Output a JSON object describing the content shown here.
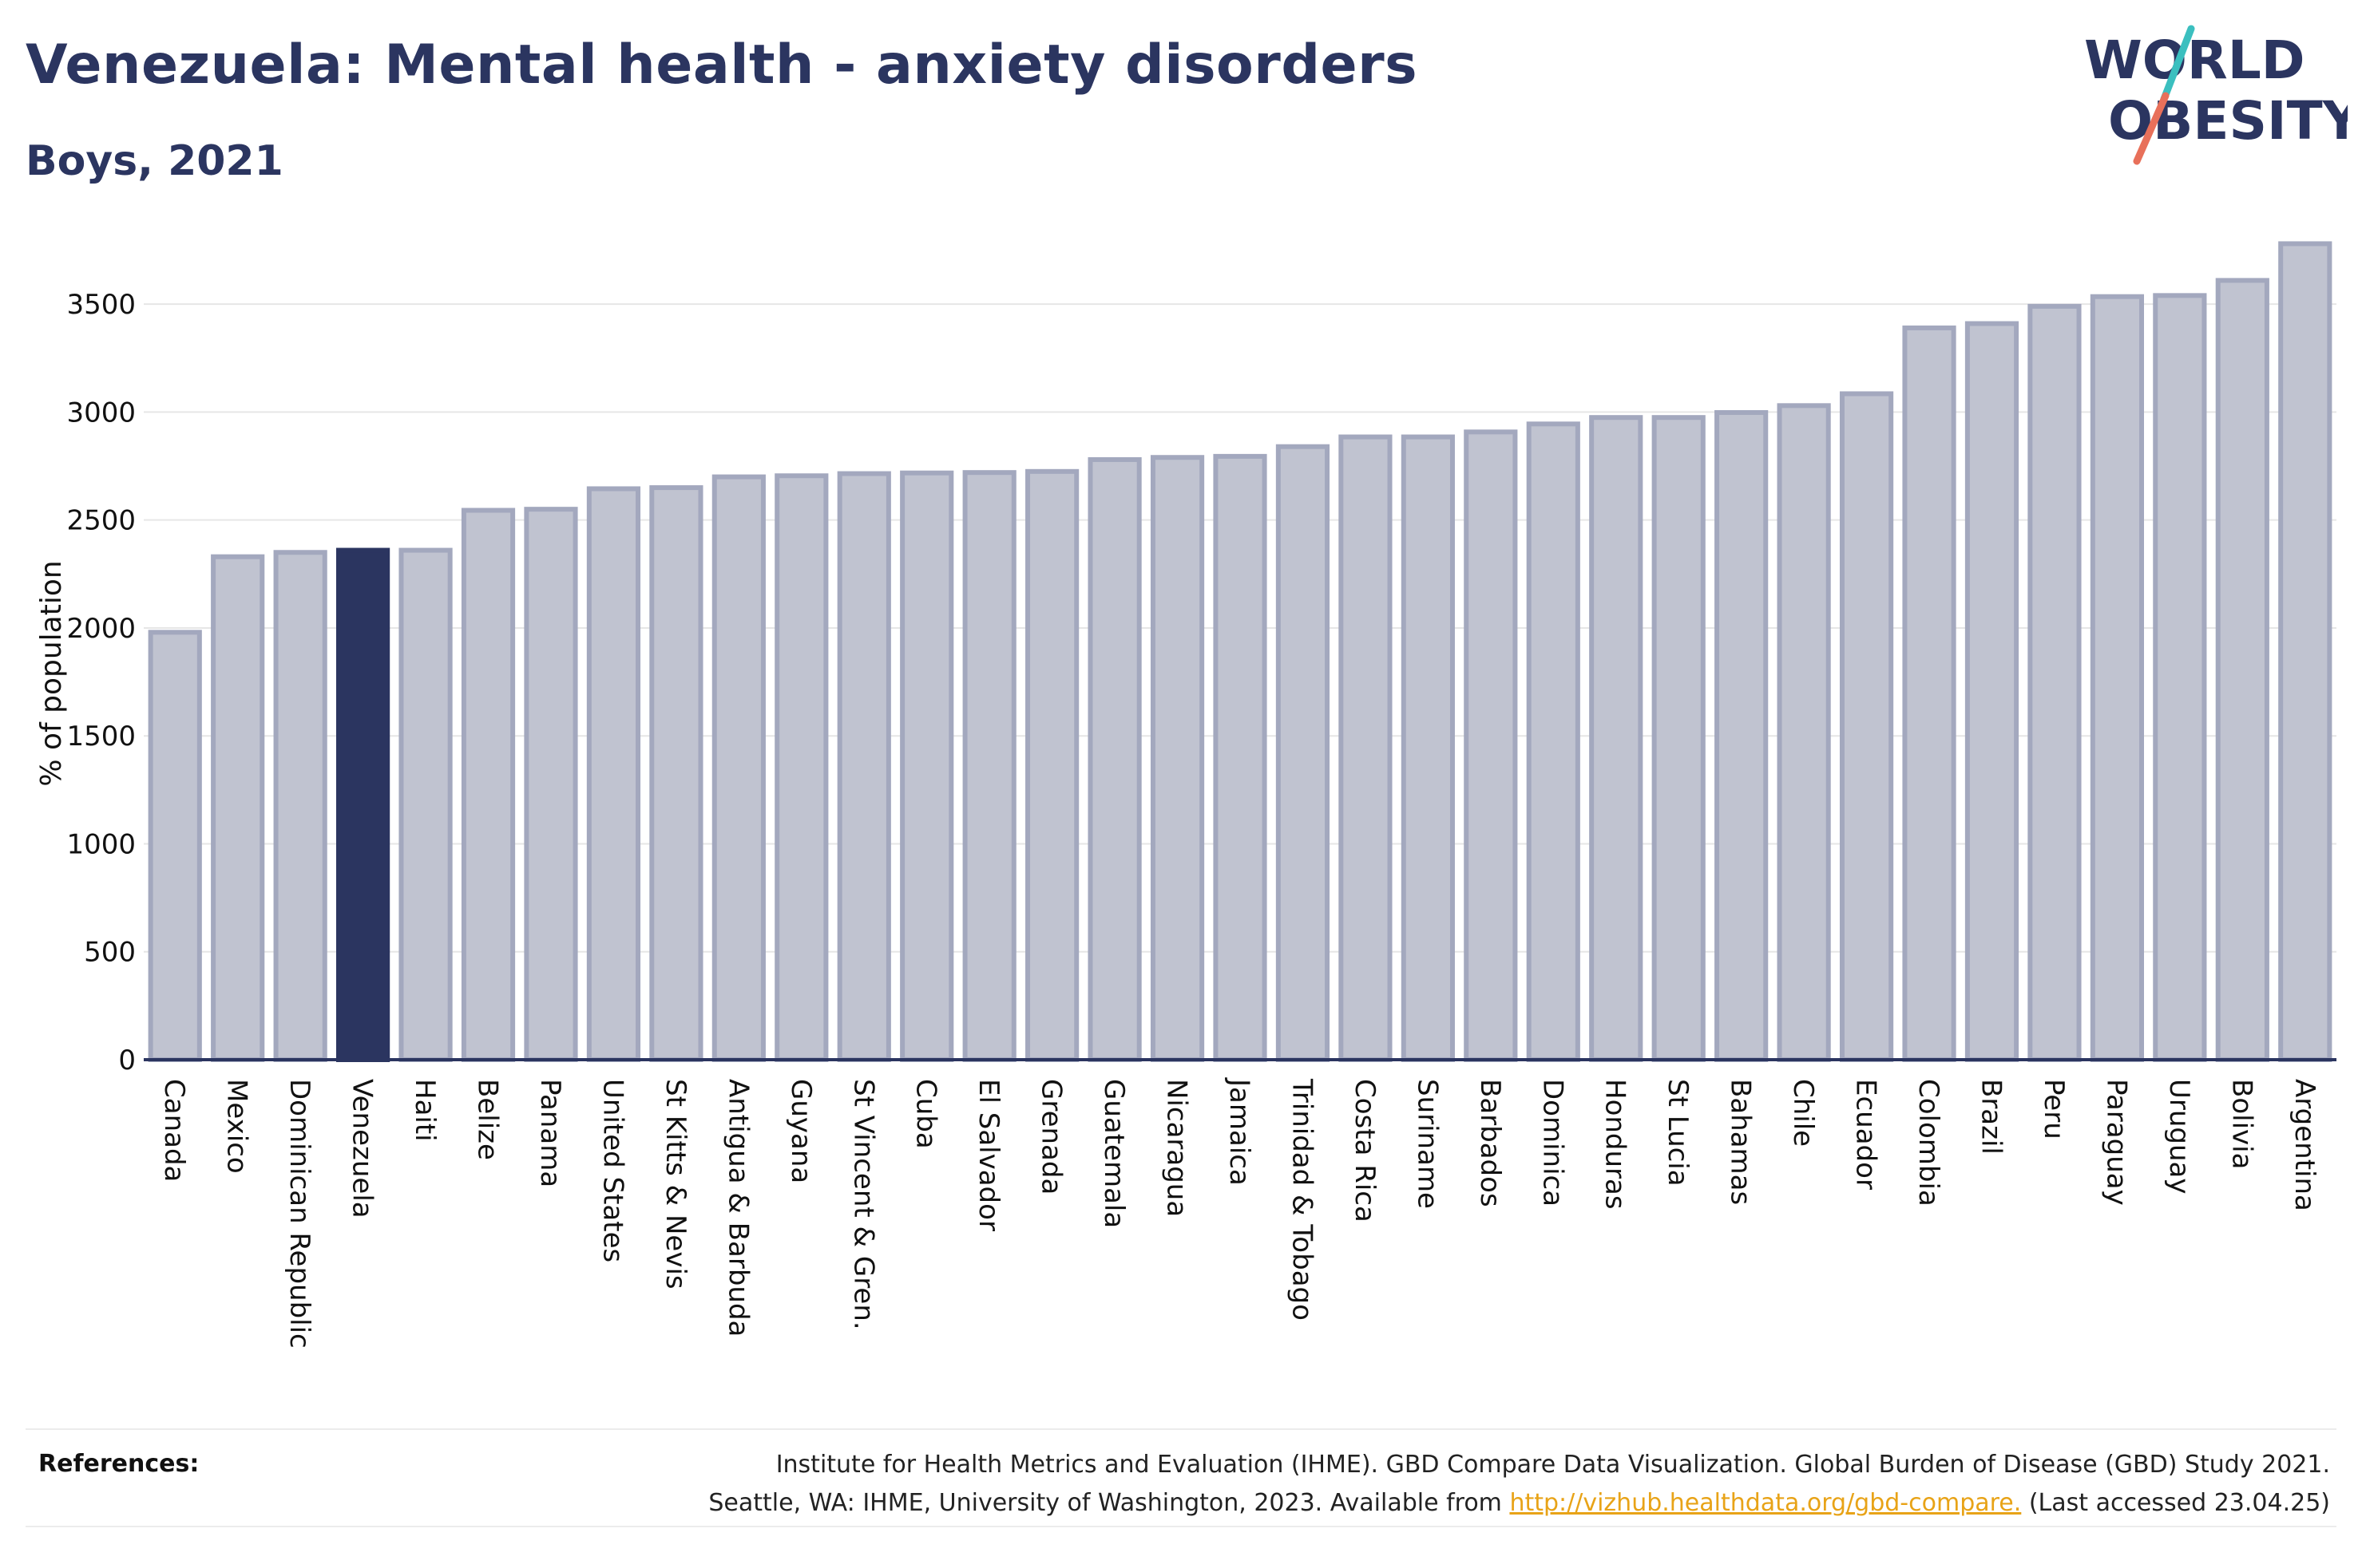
{
  "header": {
    "title": "Venezuela: Mental health - anxiety disorders",
    "subtitle": "Boys, 2021"
  },
  "logo": {
    "line1": "WORLD",
    "line2": "OBESITY",
    "colors": {
      "text": "#2b3560",
      "slash_top": "#3bbfbf",
      "slash_bottom": "#e8705a"
    }
  },
  "chart_data": {
    "type": "bar",
    "title": "",
    "xlabel": "",
    "ylabel": "% of population",
    "ylim": [
      0,
      3800
    ],
    "yticks": [
      0,
      500,
      1000,
      1500,
      2000,
      2500,
      3000,
      3500
    ],
    "grid": true,
    "highlight": "Venezuela",
    "colors": {
      "bar": "#c0c3d0",
      "bar_edge": "#a3a8be",
      "highlight": "#2b3560",
      "axis": "#2b3560",
      "grid": "#e6e6e6"
    },
    "categories": [
      "Canada",
      "Mexico",
      "Dominican Republic",
      "Venezuela",
      "Haiti",
      "Belize",
      "Panama",
      "United States",
      "St Kitts & Nevis",
      "Antigua & Barbuda",
      "Guyana",
      "St Vincent & Gren.",
      "Cuba",
      "El Salvador",
      "Grenada",
      "Guatemala",
      "Nicaragua",
      "Jamaica",
      "Trinidad & Tobago",
      "Costa Rica",
      "Suriname",
      "Barbados",
      "Dominica",
      "Honduras",
      "St Lucia",
      "Bahamas",
      "Chile",
      "Ecuador",
      "Colombia",
      "Brazil",
      "Peru",
      "Paraguay",
      "Uruguay",
      "Bolivia",
      "Argentina"
    ],
    "values": [
      1980,
      2330,
      2350,
      2360,
      2360,
      2545,
      2550,
      2645,
      2650,
      2700,
      2705,
      2715,
      2718,
      2720,
      2725,
      2780,
      2790,
      2795,
      2840,
      2885,
      2885,
      2908,
      2945,
      2975,
      2975,
      2998,
      3030,
      3085,
      3390,
      3410,
      3490,
      3535,
      3540,
      3610,
      3780
    ]
  },
  "references": {
    "label": "References:",
    "line1": "Institute for Health Metrics and Evaluation (IHME). GBD Compare Data Visualization. Global Burden of Disease (GBD) Study 2021.",
    "line2_prefix": "Seattle, WA: IHME, University of Washington, 2023. Available from ",
    "link": "http://vizhub.healthdata.org/gbd-compare.",
    "line2_suffix": " (Last accessed 23.04.25)"
  }
}
